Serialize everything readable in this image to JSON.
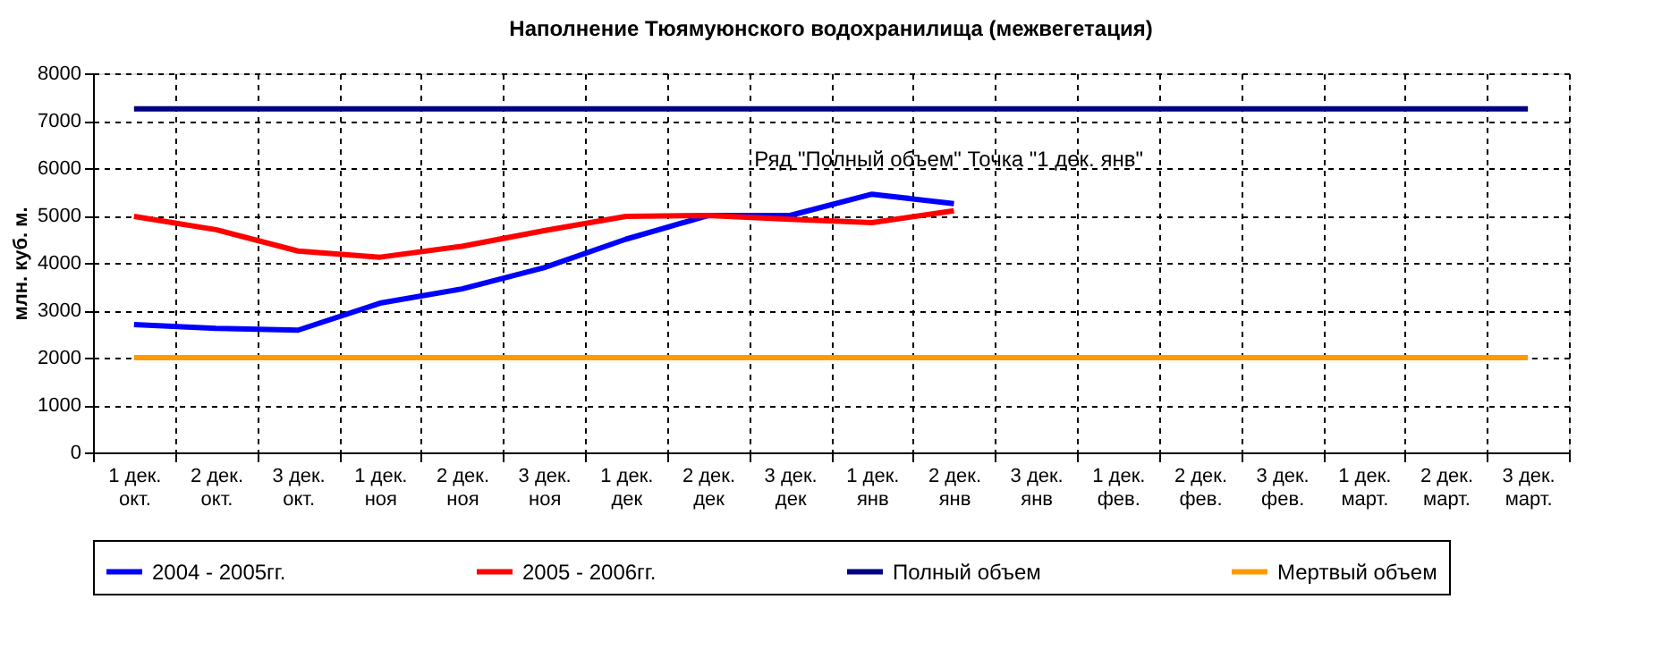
{
  "chart_data": {
    "type": "line",
    "title": "Наполнение Тюямуюнского водохранилища (межвегетация)",
    "ylabel": "млн. куб. м.",
    "categories": [
      "1 дек. окт.",
      "2 дек. окт.",
      "3 дек. окт.",
      "1 дек. ноя",
      "2 дек. ноя",
      "3 дек. ноя",
      "1 дек. дек",
      "2 дек. дек",
      "3 дек. дек",
      "1 дек. янв",
      "2 дек. янв",
      "3 дек. янв",
      "1 дек. фев.",
      "2 дек. фев.",
      "3 дек. фев.",
      "1 дек. март.",
      "2 дек. март.",
      "3 дек. март."
    ],
    "series": [
      {
        "name": "2004 - 2005гг.",
        "color": "#0000ff",
        "values": [
          2700,
          2620,
          2580,
          3150,
          3450,
          3900,
          4500,
          5000,
          5000,
          5450,
          5250,
          null,
          null,
          null,
          null,
          null,
          null,
          null
        ]
      },
      {
        "name": "2005 - 2006гг.",
        "color": "#ff0000",
        "values": [
          4980,
          4700,
          4250,
          4120,
          4350,
          4680,
          4980,
          5000,
          4920,
          4850,
          5100,
          null,
          null,
          null,
          null,
          null,
          null,
          null
        ]
      },
      {
        "name": "Полный объем",
        "color": "#000080",
        "values": [
          7250,
          7250,
          7250,
          7250,
          7250,
          7250,
          7250,
          7250,
          7250,
          7250,
          7250,
          7250,
          7250,
          7250,
          7250,
          7250,
          7250,
          7250
        ]
      },
      {
        "name": "Мертвый объем",
        "color": "#ff9900",
        "values": [
          2000,
          2000,
          2000,
          2000,
          2000,
          2000,
          2000,
          2000,
          2000,
          2000,
          2000,
          2000,
          2000,
          2000,
          2000,
          2000,
          2000,
          2000
        ]
      }
    ],
    "ylim": [
      0,
      8000
    ],
    "yticks": [
      0,
      1000,
      2000,
      3000,
      4000,
      5000,
      6000,
      7000,
      8000
    ],
    "grid": true,
    "legend": "bottom",
    "marker": "none",
    "line_style": "solid",
    "annotations": [
      "Ряд \"Полный объем\" Точка \"1 дек. янв\""
    ]
  }
}
